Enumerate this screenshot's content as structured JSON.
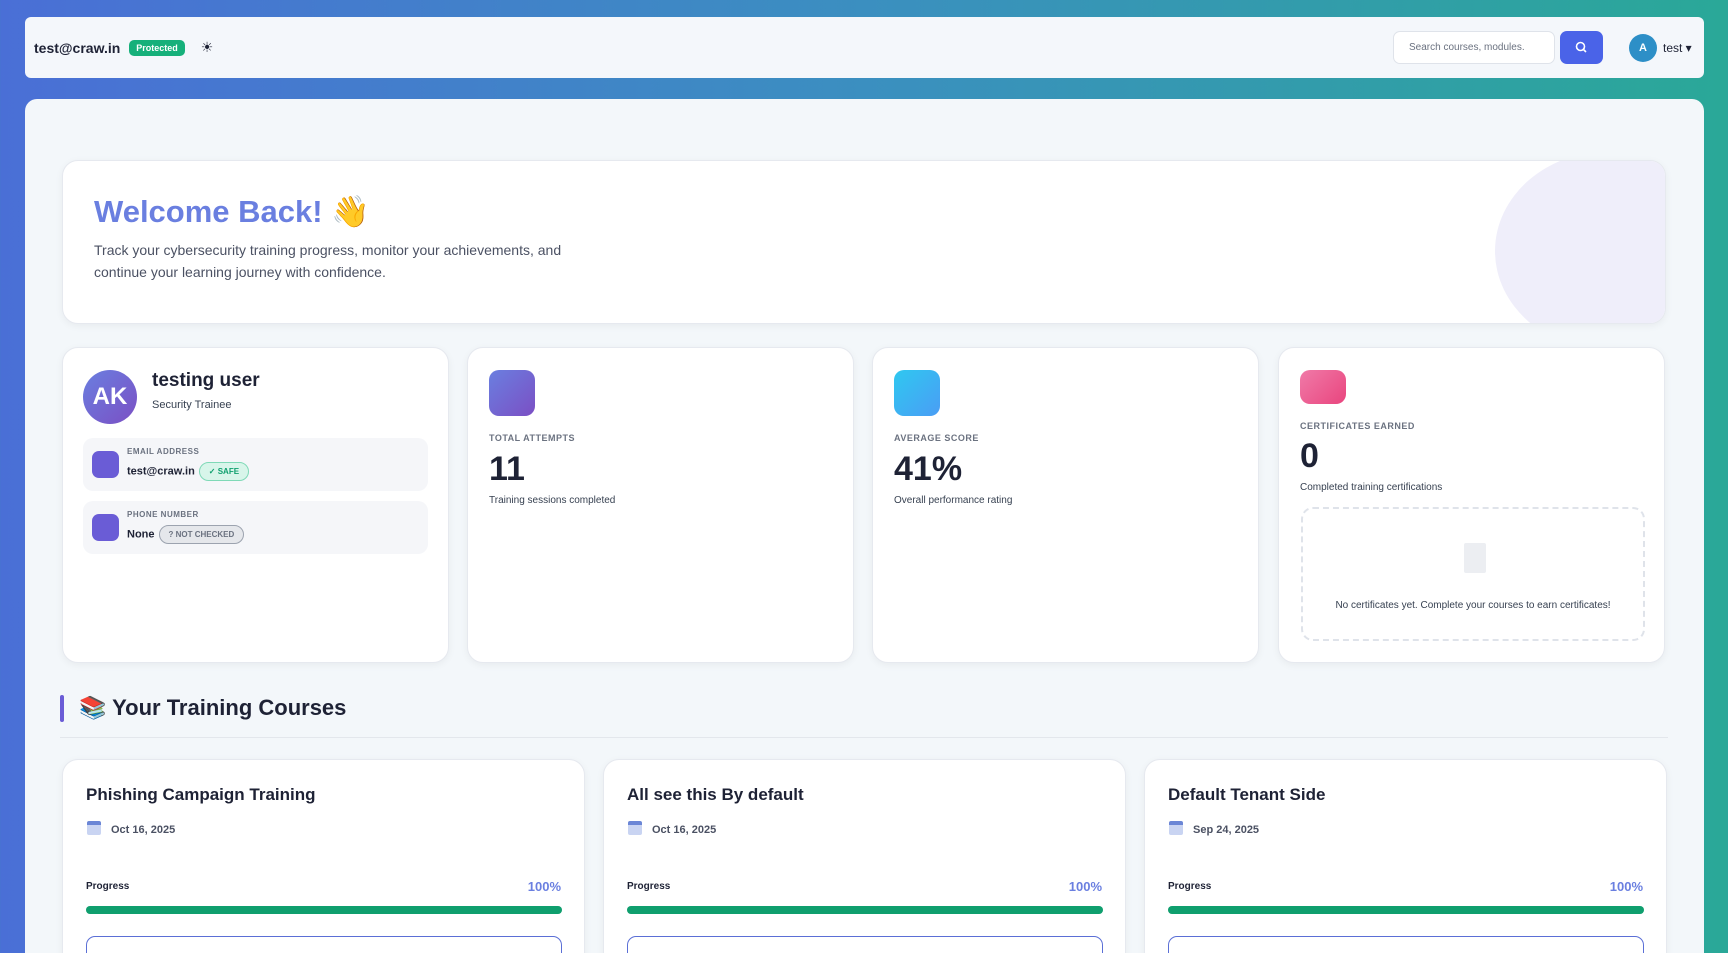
{
  "header": {
    "email": "test@craw.in",
    "badge": "Protected",
    "search_placeholder": "Search courses, modules.",
    "avatar": "A",
    "user": "test"
  },
  "welcome": {
    "title": "Welcome Back! 👋",
    "description": "Track your cybersecurity training progress, monitor your achievements, and continue your learning journey with confidence."
  },
  "profile": {
    "initials": "AK",
    "name": "testing user",
    "role": "Security Trainee",
    "email_label": "EMAIL ADDRESS",
    "email": "test@craw.in",
    "email_badge": "✓ SAFE",
    "phone_label": "PHONE NUMBER",
    "phone": "None",
    "phone_badge": "? NOT CHECKED"
  },
  "stats": [
    {
      "label": "TOTAL ATTEMPTS",
      "value": "11",
      "caption": "Training sessions completed"
    },
    {
      "label": "AVERAGE SCORE",
      "value": "41%",
      "caption": "Overall performance rating"
    },
    {
      "label": "CERTIFICATES EARNED",
      "value": "0",
      "caption": "Completed training certifications",
      "empty": "No certificates yet. Complete your courses to earn certificates!"
    }
  ],
  "courses_section": {
    "title": "📚 Your Training Courses"
  },
  "courses": [
    {
      "title": "Phishing Campaign Training",
      "date": "Oct 16, 2025",
      "progress_label": "Progress",
      "progress": {
        "value": 100,
        "label": "100%"
      }
    },
    {
      "title": "All see this By default",
      "date": "Oct 16, 2025",
      "progress_label": "Progress",
      "progress": {
        "value": 100,
        "label": "100%"
      }
    },
    {
      "title": "Default Tenant Side",
      "date": "Sep 24, 2025",
      "progress_label": "Progress",
      "progress": {
        "value": 100,
        "label": "100%"
      }
    }
  ]
}
